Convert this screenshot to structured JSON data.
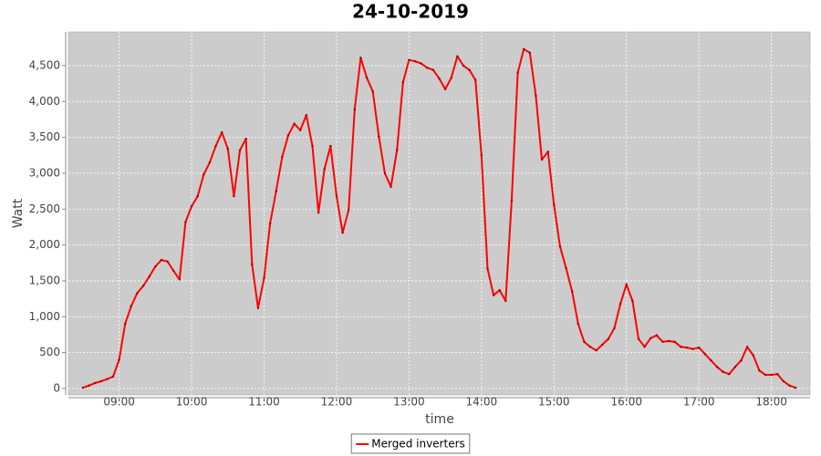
{
  "chart_data": {
    "type": "line",
    "title": "24-10-2019",
    "x_label": "time",
    "y_label": "Watt",
    "x": [
      "08:30",
      "08:35",
      "08:40",
      "08:45",
      "08:50",
      "08:55",
      "09:00",
      "09:05",
      "09:10",
      "09:15",
      "09:20",
      "09:25",
      "09:30",
      "09:35",
      "09:40",
      "09:45",
      "09:50",
      "09:55",
      "10:00",
      "10:05",
      "10:10",
      "10:15",
      "10:20",
      "10:25",
      "10:30",
      "10:35",
      "10:40",
      "10:45",
      "10:50",
      "10:55",
      "11:00",
      "11:05",
      "11:10",
      "11:15",
      "11:20",
      "11:25",
      "11:30",
      "11:35",
      "11:40",
      "11:45",
      "11:50",
      "11:55",
      "12:00",
      "12:05",
      "12:10",
      "12:15",
      "12:20",
      "12:25",
      "12:30",
      "12:35",
      "12:40",
      "12:45",
      "12:50",
      "12:55",
      "13:00",
      "13:05",
      "13:10",
      "13:15",
      "13:20",
      "13:25",
      "13:30",
      "13:35",
      "13:40",
      "13:45",
      "13:50",
      "13:55",
      "14:00",
      "14:05",
      "14:10",
      "14:15",
      "14:20",
      "14:25",
      "14:30",
      "14:35",
      "14:40",
      "14:45",
      "14:50",
      "14:55",
      "15:00",
      "15:05",
      "15:10",
      "15:15",
      "15:20",
      "15:25",
      "15:30",
      "15:35",
      "15:40",
      "15:45",
      "15:50",
      "15:55",
      "16:00",
      "16:05",
      "16:10",
      "16:15",
      "16:20",
      "16:25",
      "16:30",
      "16:35",
      "16:40",
      "16:45",
      "16:50",
      "16:55",
      "17:00",
      "17:05",
      "17:10",
      "17:15",
      "17:20",
      "17:25",
      "17:30",
      "17:35",
      "17:40",
      "17:45",
      "17:50",
      "17:55",
      "18:00",
      "18:05",
      "18:10",
      "18:15",
      "18:20"
    ],
    "series": [
      {
        "name": "Merged inverters",
        "color": "#ff0000",
        "values": [
          10,
          40,
          75,
          100,
          130,
          165,
          400,
          900,
          1150,
          1330,
          1430,
          1560,
          1700,
          1790,
          1770,
          1640,
          1520,
          2320,
          2540,
          2680,
          2980,
          3150,
          3380,
          3570,
          3340,
          2680,
          3320,
          3480,
          1730,
          1120,
          1540,
          2300,
          2750,
          3230,
          3530,
          3690,
          3600,
          3810,
          3380,
          2450,
          3060,
          3380,
          2680,
          2170,
          2490,
          3890,
          4610,
          4330,
          4140,
          3510,
          3000,
          2810,
          3320,
          4270,
          4580,
          4560,
          4530,
          4470,
          4440,
          4320,
          4170,
          4330,
          4630,
          4500,
          4440,
          4300,
          3250,
          1670,
          1300,
          1370,
          1220,
          2620,
          4400,
          4730,
          4680,
          4080,
          3190,
          3300,
          2560,
          1980,
          1680,
          1350,
          900,
          650,
          580,
          530,
          610,
          690,
          840,
          1180,
          1450,
          1220,
          690,
          580,
          700,
          740,
          650,
          660,
          650,
          580,
          570,
          550,
          570,
          480,
          390,
          300,
          230,
          200,
          300,
          390,
          580,
          460,
          250,
          190,
          190,
          200,
          100,
          40,
          10
        ]
      }
    ],
    "xlim": [
      "08:18",
      "18:32"
    ],
    "xticks": [
      "09:00",
      "10:00",
      "11:00",
      "12:00",
      "13:00",
      "14:00",
      "15:00",
      "16:00",
      "17:00",
      "18:00"
    ],
    "ylim": [
      -90,
      4970
    ],
    "yticks": [
      0,
      500,
      {
        "value": 1000,
        "label": "1,000"
      },
      {
        "value": 1500,
        "label": "1,500"
      },
      {
        "value": 2000,
        "label": "2,000"
      },
      {
        "value": 2500,
        "label": "2,500"
      },
      {
        "value": 3000,
        "label": "3,000"
      },
      {
        "value": 3500,
        "label": "3,500"
      },
      {
        "value": 4000,
        "label": "4,000"
      },
      {
        "value": 4500,
        "label": "4,500"
      }
    ],
    "grid": true,
    "legend": "bottom"
  }
}
